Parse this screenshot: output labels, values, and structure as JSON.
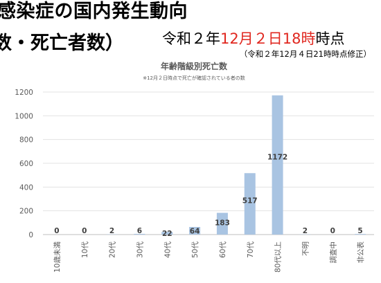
{
  "heading": {
    "line1": "感染症の国内発生動向",
    "line2": "数・死亡者数）",
    "timestamp_pre": "令和２年",
    "timestamp_red": "12月２日18時",
    "timestamp_post": "時点",
    "revision_note": "（令和２年12月４日21時時点修正）"
  },
  "chart_data": {
    "type": "bar",
    "title": "年齢階級別死亡数",
    "subtitle": "※12月２日時点で死亡が確認されている者の数",
    "categories": [
      "10歳未満",
      "10代",
      "20代",
      "30代",
      "40代",
      "50代",
      "60代",
      "70代",
      "80代以上",
      "不明",
      "調査中",
      "非公表"
    ],
    "values": [
      0,
      0,
      2,
      6,
      22,
      64,
      183,
      517,
      1172,
      2,
      0,
      5
    ],
    "ylim": [
      0,
      1200
    ],
    "yticks": [
      0,
      200,
      400,
      600,
      800,
      1000,
      1200
    ],
    "bar_color": "#a9c4e2",
    "grid": true,
    "legend": "none"
  }
}
